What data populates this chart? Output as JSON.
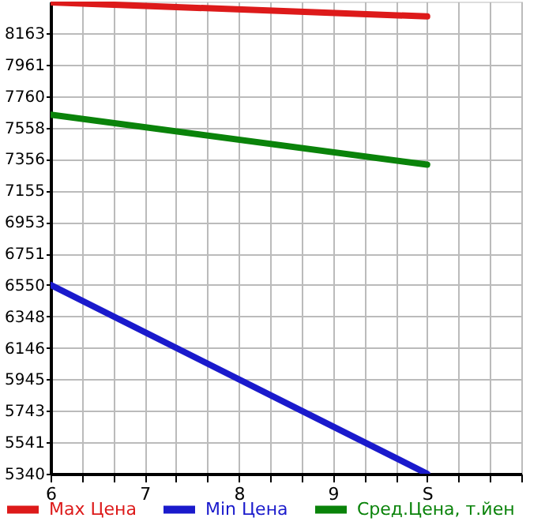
{
  "chart_data": {
    "type": "line",
    "x": [
      6,
      10
    ],
    "series": [
      {
        "name": "Max Цена",
        "color": "#dd1a1a",
        "values": [
          8360,
          8270
        ]
      },
      {
        "name": "Min Цена",
        "color": "#1a1acc",
        "values": [
          6550,
          5340
        ]
      },
      {
        "name": "Сред.Цена, т.йен",
        "color": "#0a830a",
        "values": [
          7640,
          7320
        ]
      }
    ],
    "xlim": [
      6,
      11
    ],
    "xticks": [
      6,
      {
        "value": 6.333,
        "label": null
      },
      {
        "value": 6.667,
        "label": null
      },
      7,
      {
        "value": 7.333,
        "label": null
      },
      {
        "value": 7.667,
        "label": null
      },
      8,
      {
        "value": 8.333,
        "label": null
      },
      {
        "value": 8.667,
        "label": null
      },
      9,
      {
        "value": 9.333,
        "label": null
      },
      {
        "value": 9.667,
        "label": null
      },
      {
        "value": 10,
        "label": "S"
      },
      {
        "value": 10.333,
        "label": null
      },
      {
        "value": 10.667,
        "label": null
      },
      {
        "value": 11,
        "label": null
      }
    ],
    "ylim": [
      5340,
      8365
    ],
    "yticks": [
      5340,
      5541,
      5743,
      5945,
      6146,
      6348,
      6550,
      6751,
      6953,
      7155,
      7356,
      7558,
      7760,
      7961,
      8163
    ],
    "grid": true,
    "legend": "bottom",
    "marker": "none",
    "line_style": "solid"
  }
}
